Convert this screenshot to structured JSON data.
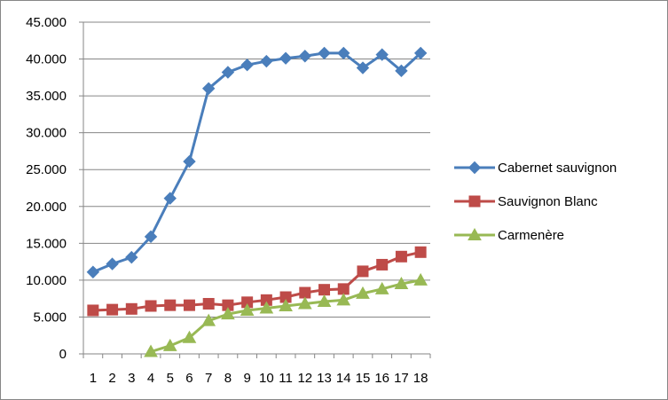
{
  "chart_data": {
    "type": "line",
    "title": "",
    "xlabel": "",
    "ylabel": "",
    "x": [
      1,
      2,
      3,
      4,
      5,
      6,
      7,
      8,
      9,
      10,
      11,
      12,
      13,
      14,
      15,
      16,
      17,
      18
    ],
    "ylim": [
      0,
      45000
    ],
    "y_tick_labels": [
      "0",
      "5.000",
      "10.000",
      "15.000",
      "20.000",
      "25.000",
      "30.000",
      "35.000",
      "40.000",
      "45.000"
    ],
    "x_tick_labels": [
      "1",
      "2",
      "3",
      "4",
      "5",
      "6",
      "7",
      "8",
      "9",
      "10",
      "11",
      "12",
      "13",
      "14",
      "15",
      "16",
      "17",
      "18"
    ],
    "grid": "horizontal",
    "legend_position": "right",
    "series": [
      {
        "name": "Cabernet  sauvignon",
        "color": "#4a7ebb",
        "marker": "diamond",
        "values": [
          11100,
          12200,
          13100,
          15900,
          21100,
          26100,
          36000,
          38200,
          39200,
          39700,
          40100,
          40400,
          40800,
          40800,
          38800,
          40600,
          38400,
          40800
        ]
      },
      {
        "name": "Sauvignon Blanc",
        "color": "#be4b48",
        "marker": "square",
        "values": [
          5900,
          6000,
          6100,
          6500,
          6600,
          6600,
          6800,
          6600,
          7000,
          7300,
          7700,
          8300,
          8700,
          8800,
          11200,
          12100,
          13200,
          13800
        ]
      },
      {
        "name": "Carmenère",
        "color": "#98b954",
        "marker": "triangle",
        "values": [
          null,
          null,
          null,
          300,
          1100,
          2200,
          4500,
          5400,
          5900,
          6200,
          6500,
          6800,
          7100,
          7300,
          8200,
          8800,
          9500,
          10000
        ]
      }
    ]
  }
}
